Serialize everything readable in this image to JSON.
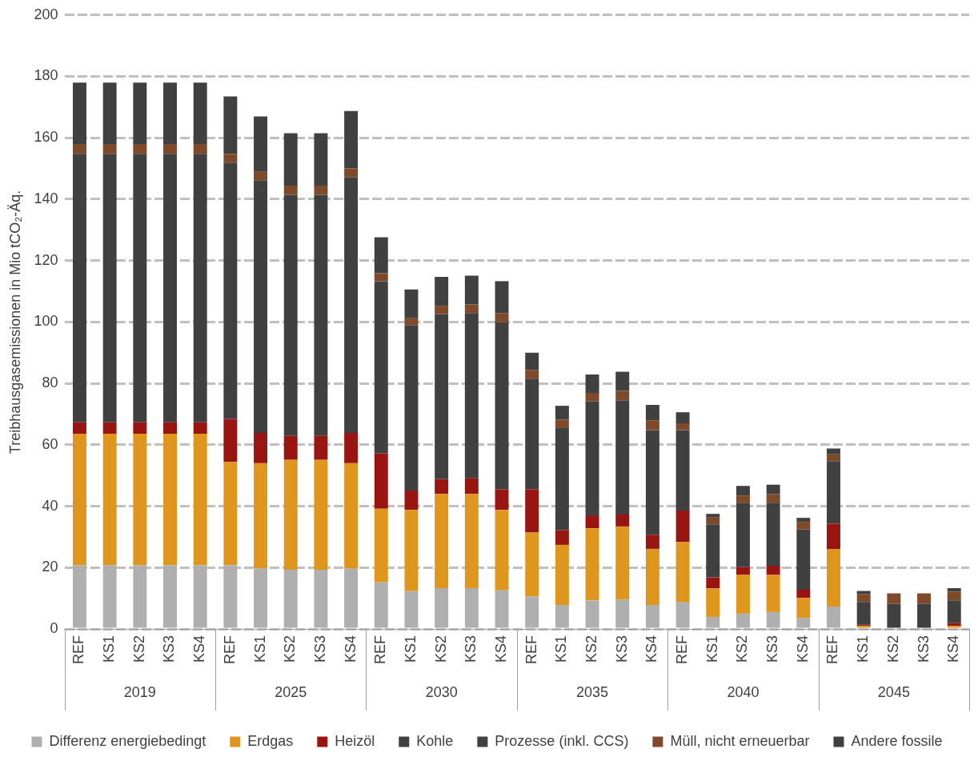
{
  "chart_data": {
    "type": "bar",
    "stacked": true,
    "ylabel": "Treibhausgasemissionen in Mio tCO₂-Äq.",
    "categories": [
      "REF",
      "KS1",
      "KS2",
      "KS3",
      "KS4",
      "REF",
      "KS1",
      "KS2",
      "KS3",
      "KS4",
      "REF",
      "KS1",
      "KS2",
      "KS3",
      "KS4",
      "REF",
      "KS1",
      "KS2",
      "KS3",
      "KS4",
      "REF",
      "KS1",
      "KS2",
      "KS3",
      "KS4",
      "REF",
      "KS1",
      "KS2",
      "KS3",
      "KS4"
    ],
    "annotations": [
      "2019",
      "2025",
      "2030",
      "2035",
      "2040",
      "2045"
    ],
    "series": [
      {
        "name": "Differenz energiebedingt",
        "color": "#afafaf",
        "values": [
          20.8,
          20.8,
          20.8,
          20.8,
          20.8,
          20.8,
          19.7,
          19.3,
          19.3,
          19.7,
          15.2,
          12.3,
          13.3,
          13.3,
          12.6,
          10.6,
          7.8,
          9.3,
          9.6,
          7.8,
          8.7,
          3.9,
          5.0,
          5.5,
          3.6,
          7.3,
          null,
          null,
          null,
          null
        ]
      },
      {
        "name": "Erdgas",
        "color": "#de961c",
        "values": [
          42.8,
          42.8,
          42.8,
          42.8,
          42.8,
          33.6,
          34.3,
          35.8,
          35.8,
          34.3,
          24.0,
          26.5,
          30.7,
          30.7,
          26.2,
          20.8,
          19.6,
          23.5,
          23.8,
          18.3,
          19.6,
          9.3,
          12.6,
          12.1,
          6.5,
          18.8,
          1.0,
          0,
          0,
          1.0
        ]
      },
      {
        "name": "Heizöl",
        "color": "#981511",
        "values": [
          3.7,
          3.7,
          3.7,
          3.7,
          3.7,
          14.0,
          9.9,
          7.8,
          7.8,
          9.9,
          18.0,
          6.3,
          4.8,
          5.1,
          6.7,
          14.1,
          4.8,
          4.2,
          3.9,
          4.6,
          10.3,
          3.6,
          2.6,
          3.0,
          2.7,
          8.2,
          0.4,
          0,
          0,
          0.9
        ]
      },
      {
        "name": "Kohle",
        "color": "#404040",
        "values": [
          87.5,
          87.5,
          87.5,
          87.5,
          87.5,
          83.5,
          82.3,
          78.5,
          78.5,
          83.2,
          56.1,
          53.8,
          53.8,
          53.8,
          54.4,
          36.0,
          33.4,
          37.1,
          37.1,
          34.1,
          26.2,
          17.3,
          20.9,
          20.5,
          19.6,
          20.4,
          7.4,
          8.2,
          8.2,
          7.4
        ]
      },
      {
        "name": "Prozesse (inkl. CCS)",
        "color": "#404040",
        "values": [
          null,
          null,
          null,
          null,
          null,
          null,
          null,
          null,
          null,
          null,
          null,
          null,
          null,
          null,
          null,
          null,
          null,
          null,
          null,
          null,
          null,
          null,
          null,
          null,
          null,
          null,
          null,
          null,
          null,
          null
        ]
      },
      {
        "name": "Müll, nicht erneuerbar",
        "color": "#7f4a2a",
        "values": [
          3.2,
          3.2,
          3.2,
          3.2,
          3.2,
          2.9,
          2.7,
          3.0,
          3.0,
          2.9,
          2.6,
          2.3,
          2.7,
          2.8,
          3.0,
          2.9,
          2.6,
          2.8,
          3.2,
          3.2,
          2.2,
          2.2,
          2.4,
          2.8,
          2.5,
          2.2,
          2.6,
          3.4,
          3.4,
          2.8
        ]
      },
      {
        "name": "Andere fossile",
        "color": "#404040",
        "values": [
          20,
          20,
          20,
          20,
          20,
          18.7,
          18.1,
          17.1,
          17.1,
          18.7,
          11.7,
          9.4,
          9.4,
          9.4,
          10.4,
          5.6,
          4.5,
          6.0,
          6.2,
          5.0,
          3.6,
          1.2,
          3.1,
          3.1,
          1.3,
          1.9,
          1.0,
          0,
          0,
          1.2
        ]
      }
    ],
    "ylim": [
      0,
      200
    ],
    "yticks": [
      0,
      20,
      40,
      60,
      80,
      100,
      120,
      140,
      160,
      180,
      200
    ],
    "grid": "y",
    "legend": "bottom"
  }
}
